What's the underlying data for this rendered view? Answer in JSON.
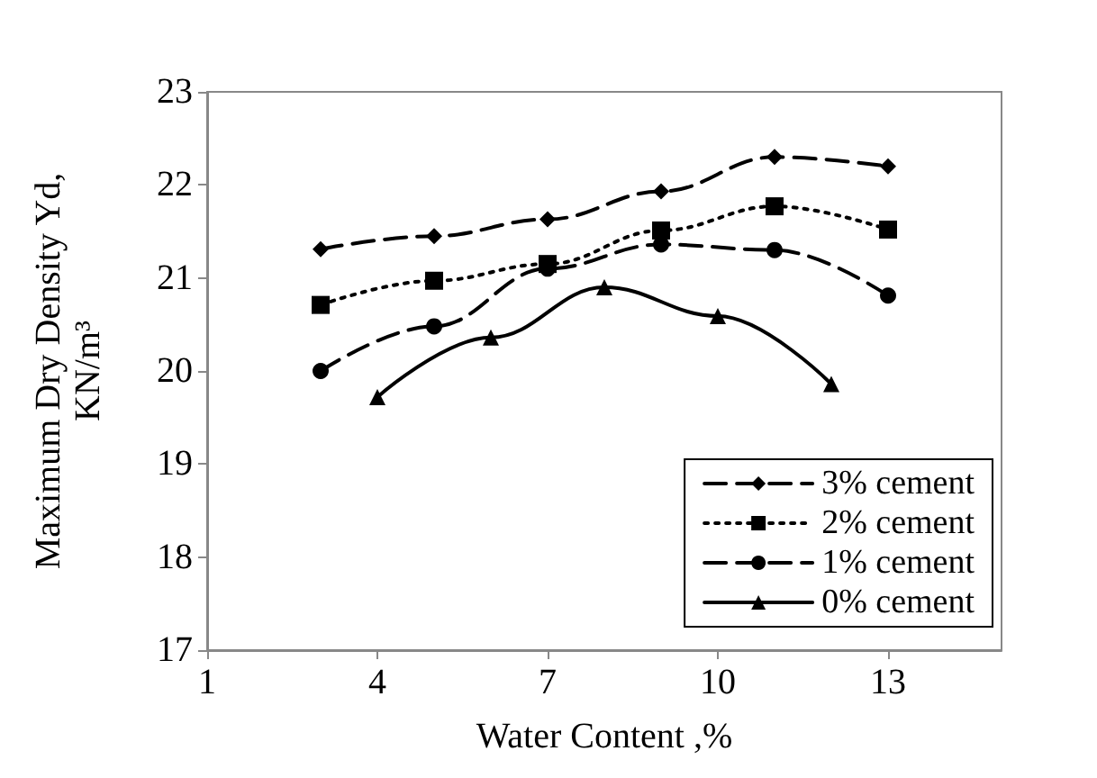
{
  "chart_data": {
    "type": "line",
    "xlabel": "Water Content ,%",
    "ylabel": "Maximum Dry Density Yd,\nKN/m³",
    "xlim": [
      1,
      15
    ],
    "xticks": [
      1,
      4,
      7,
      10,
      13
    ],
    "ylim": [
      17,
      23
    ],
    "yticks": [
      17,
      18,
      19,
      20,
      21,
      22,
      23
    ],
    "grid": false,
    "legend": "bottom right",
    "series": [
      {
        "name": "3% cement",
        "color": "#000000",
        "marker": "diamond",
        "line_style": "dashed",
        "x": [
          3,
          5,
          7,
          9,
          11,
          13
        ],
        "values": [
          21.31,
          21.45,
          21.63,
          21.93,
          22.3,
          22.2
        ]
      },
      {
        "name": "2% cement",
        "color": "#000000",
        "marker": "square",
        "line_style": "dotted",
        "x": [
          3,
          5,
          7,
          9,
          11,
          13
        ],
        "values": [
          20.71,
          20.97,
          21.15,
          21.51,
          21.77,
          21.52
        ]
      },
      {
        "name": "1% cement",
        "color": "#000000",
        "marker": "circle",
        "line_style": "dashed",
        "x": [
          3,
          5,
          7,
          9,
          11,
          13
        ],
        "values": [
          20.0,
          20.48,
          21.1,
          21.36,
          21.3,
          20.81
        ]
      },
      {
        "name": "0% cement",
        "color": "#000000",
        "marker": "triangle",
        "line_style": "solid",
        "x": [
          4,
          6,
          8,
          10,
          12
        ],
        "values": [
          19.72,
          20.36,
          20.9,
          20.59,
          19.86
        ]
      }
    ]
  }
}
